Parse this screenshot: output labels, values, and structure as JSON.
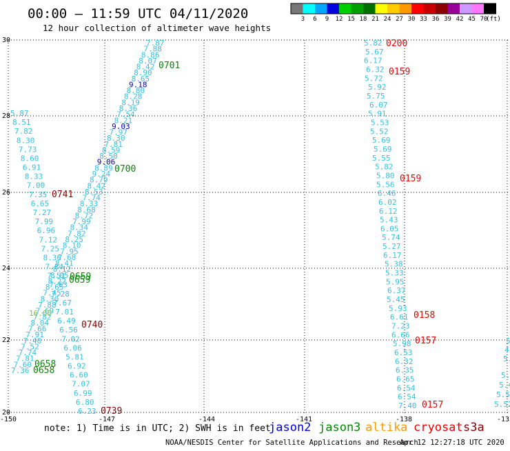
{
  "header": {
    "title": "00:00 – 11:59 UTC 04/11/2020",
    "subtitle": "12 hour collection of altimeter wave heights"
  },
  "color_scale": {
    "unit": "(ft)",
    "bins": [
      {
        "label": "3",
        "color": "#777777"
      },
      {
        "label": "6",
        "color": "#00ffff"
      },
      {
        "label": "9",
        "color": "#00a8ff"
      },
      {
        "label": "12",
        "color": "#0000e0"
      },
      {
        "label": "15",
        "color": "#00d000"
      },
      {
        "label": "18",
        "color": "#00a000"
      },
      {
        "label": "21",
        "color": "#007000"
      },
      {
        "label": "24",
        "color": "#ffff00"
      },
      {
        "label": "27",
        "color": "#ffcc00"
      },
      {
        "label": "30",
        "color": "#ff9900"
      },
      {
        "label": "33",
        "color": "#ff0000"
      },
      {
        "label": "36",
        "color": "#c80000"
      },
      {
        "label": "39",
        "color": "#8b0000"
      },
      {
        "label": "42",
        "color": "#990099"
      },
      {
        "label": "45",
        "color": "#cc99ff"
      },
      {
        "label": "70",
        "color": "#ff77ff"
      },
      {
        "label": "",
        "color": "#000000"
      }
    ]
  },
  "map": {
    "lat_labels": [
      "30",
      "28",
      "26",
      "24",
      "22",
      "20"
    ],
    "lon_labels": [
      "-150",
      "-147",
      "-144",
      "-141",
      "-138",
      "-13"
    ]
  },
  "colors": {
    "cyan_light": "#33c0e0",
    "blue_dark": "#0000b0",
    "green": "#008800",
    "red": "#ee0000",
    "dark_red": "#880000",
    "light_green": "#88c040"
  },
  "tracks": {
    "track_a": {
      "color": "#33c0e0",
      "values": [
        "7.87",
        "7.88",
        "8.86",
        "8.07",
        "8.42",
        "8.90",
        "8.65",
        "9.18",
        "8.80",
        "8.28",
        "8.19",
        "8.36",
        "7.54",
        "8.21",
        "9.03",
        "7.97",
        "8.30",
        "7.81",
        "8.59",
        "8.50",
        "9.06",
        "8.89",
        "9.24",
        "8.79",
        "8.42",
        "8.53",
        "7.74",
        "8.33",
        "8.68",
        "8.72",
        "7.99",
        "8.34",
        "7.82",
        "8.25",
        "8.10",
        "7.95",
        "7.68",
        "8.41",
        "8.12",
        "8.05",
        "8.22",
        "8.65",
        "7.45",
        "8.30",
        "7.88",
        "7.69",
        "7.82",
        "8.04",
        "7.66",
        "7.91",
        "7.40",
        "7.52",
        "7.74",
        "7.81",
        "7.60",
        "7.36"
      ]
    },
    "track_b": {
      "color": "#33c0e0",
      "values": [
        "5.87",
        "8.51",
        "7.82",
        "8.30",
        "7.73",
        "8.60",
        "6.91",
        "8.33",
        "7.00",
        "7.35",
        "6.65",
        "7.27",
        "7.99",
        "6.96",
        "7.12",
        "7.25",
        "8.36",
        "7.84",
        "7.51",
        "7.63",
        "7.28",
        "7.67",
        "7.01",
        "6.49",
        "6.56",
        "7.02",
        "6.06",
        "5.81",
        "6.92",
        "6.60",
        "7.07",
        "6.99",
        "6.80",
        "6.23"
      ]
    },
    "track_c": {
      "color": "#33c0e0",
      "values": [
        "5.82",
        "5.67",
        "6.17",
        "6.32",
        "5.72",
        "5.92",
        "5.75",
        "6.07",
        "5.91",
        "5.53",
        "5.52",
        "5.69",
        "5.69",
        "5.55",
        "5.82",
        "5.80",
        "5.56",
        "6.46",
        "6.02",
        "6.12",
        "5.43",
        "6.05",
        "5.74",
        "5.27",
        "6.17",
        "5.38",
        "5.33",
        "5.95",
        "6.37",
        "5.45",
        "5.93",
        "6.61",
        "7.23",
        "6.66",
        "5.98",
        "6.53",
        "6.32",
        "6.35",
        "6.65",
        "6.54",
        "6.54",
        "7.40"
      ]
    },
    "track_d": {
      "color": "#33c0e0",
      "values": [
        "5.",
        "4.",
        "5.",
        "5.4",
        "5.4",
        "5.5",
        "5.52"
      ]
    },
    "track_e": {
      "color": "#88c040",
      "values": [
        "16.00"
      ]
    }
  },
  "time_labels": [
    {
      "text": "0701",
      "color": "#008800"
    },
    {
      "text": "0700",
      "color": "#008800"
    },
    {
      "text": "0659",
      "color": "#008800"
    },
    {
      "text": "0659",
      "color": "#008800"
    },
    {
      "text": "0658",
      "color": "#008800"
    },
    {
      "text": "0658",
      "color": "#008800"
    },
    {
      "text": "0741",
      "color": "#880000"
    },
    {
      "text": "0740",
      "color": "#880000"
    },
    {
      "text": "0739",
      "color": "#880000"
    },
    {
      "text": "0200",
      "color": "#ee0000"
    },
    {
      "text": "0159",
      "color": "#ee0000"
    },
    {
      "text": "0159",
      "color": "#ee0000"
    },
    {
      "text": "0158",
      "color": "#ee0000"
    },
    {
      "text": "0157",
      "color": "#ee0000"
    },
    {
      "text": "0157",
      "color": "#ee0000"
    }
  ],
  "legend": {
    "note": "note: 1) Time is in UTC; 2) SWH is in feet",
    "missions": [
      {
        "name": "jason2",
        "color": "#0000dd"
      },
      {
        "name": "jason3",
        "color": "#008800"
      },
      {
        "name": "altika",
        "color": "#ff9900"
      },
      {
        "name": "cryosat",
        "color": "#ee0000"
      },
      {
        "name": "s3a",
        "color": "#880000"
      }
    ]
  },
  "footer": {
    "credit": "NOAA/NESDIS Center for Satellite Applications and Research",
    "timestamp": "Apr 12 12:27:18 UTC 2020"
  }
}
